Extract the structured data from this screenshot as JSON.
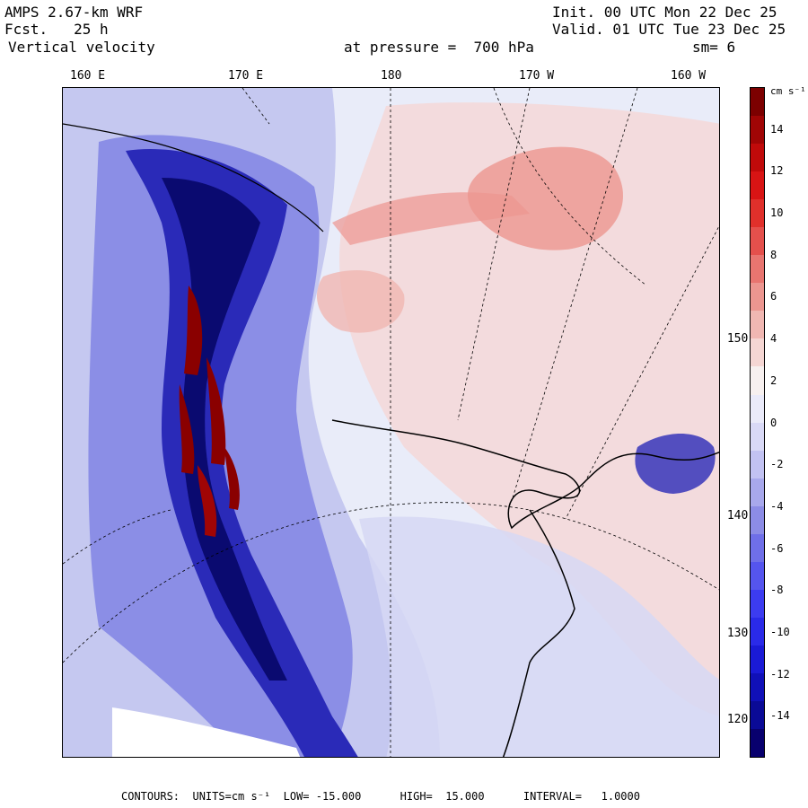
{
  "header": {
    "model": "AMPS 2.67-km WRF",
    "forecast": "Fcst.   25 h",
    "variable": "Vertical velocity",
    "level": "at pressure =  700 hPa",
    "init": "Init. 00 UTC Mon 22 Dec 25",
    "valid": "Valid. 01 UTC Tue 23 Dec 25",
    "smoothing": "sm= 6"
  },
  "longitude_labels": [
    "160 E",
    "170 E",
    "180",
    "170 W",
    "160 W"
  ],
  "latitude_labels": [
    "150 W",
    "140 W",
    "130 W",
    "120 W"
  ],
  "colorbar": {
    "units": "cm s⁻¹",
    "ticks": [
      "14",
      "12",
      "10",
      "8",
      "6",
      "4",
      "2",
      "0",
      "-2",
      "-4",
      "-6",
      "-8",
      "-10",
      "-12",
      "-14"
    ],
    "colors": [
      "#08006e",
      "#0a0a96",
      "#1010b8",
      "#1a1ad6",
      "#2a2ae8",
      "#3c3cf0",
      "#5555ee",
      "#6f6fe8",
      "#8c8ce6",
      "#a8a8ec",
      "#c2c2f2",
      "#d9d9f6",
      "#eaeaf9",
      "#f7f0ef",
      "#f5d6d3",
      "#f0b7b2",
      "#ec9690",
      "#e87570",
      "#e4504c",
      "#e0302b",
      "#d81414",
      "#c00a0a",
      "#a00505",
      "#7c0000"
    ]
  },
  "map_colors": {
    "background": "#e9ecf9",
    "light_blue": "#c5c8f0",
    "mid_blue": "#8b8ee6",
    "deep_blue": "#2a2ab8",
    "navy": "#0a0a70",
    "pink": "#f5d6d3",
    "salmon": "#ec9690",
    "dark_red": "#8a0000",
    "land_white": "#ffffff"
  },
  "footer": "CONTOURS:  UNITS=cm s⁻¹  LOW= -15.000      HIGH=  15.000      INTERVAL=   1.0000"
}
